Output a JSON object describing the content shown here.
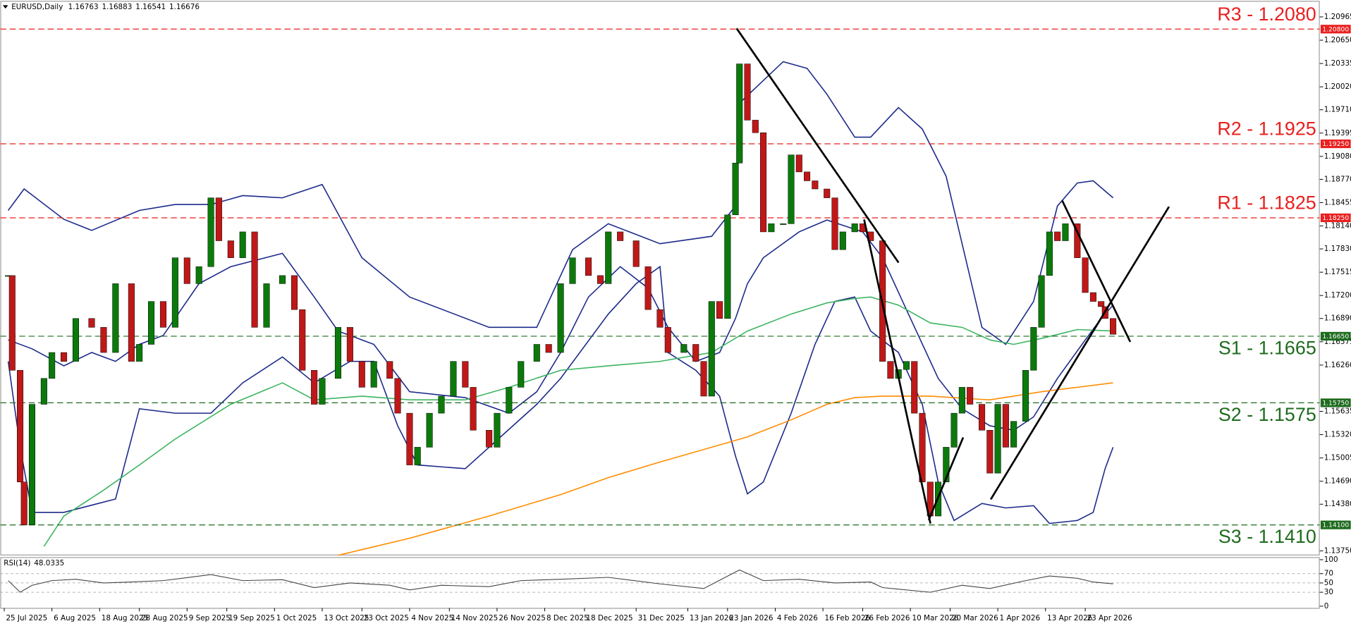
{
  "chart_data": {
    "type": "candlestick",
    "symbol": "EURUSD,Daily",
    "ohlc": [
      1.16763,
      1.16883,
      1.16541,
      1.16676
    ],
    "up_color": "#0b7a0b",
    "down_color": "#c01818",
    "grid": false,
    "xlim": [
      "2025-07-24",
      "2026-06-21"
    ],
    "ylim": [
      1.137,
      1.2117
    ],
    "xticks": [
      {
        "value": "2025-07-25",
        "label": "25 Jul 2025"
      },
      {
        "value": "2025-08-06",
        "label": "6 Aug 2025"
      },
      {
        "value": "2025-08-18",
        "label": "18 Aug 2025"
      },
      {
        "value": "2025-08-28",
        "label": "28 Aug 2025"
      },
      {
        "value": "2025-09-09",
        "label": "9 Sep 2025"
      },
      {
        "value": "2025-09-19",
        "label": "19 Sep 2025"
      },
      {
        "value": "2025-10-01",
        "label": "1 Oct 2025"
      },
      {
        "value": "2025-10-13",
        "label": "13 Oct 2025"
      },
      {
        "value": "2025-10-23",
        "label": "23 Oct 2025"
      },
      {
        "value": "2025-11-04",
        "label": "4 Nov 2025"
      },
      {
        "value": "2025-11-14",
        "label": "14 Nov 2025"
      },
      {
        "value": "2025-11-26",
        "label": "26 Nov 2025"
      },
      {
        "value": "2025-12-08",
        "label": "8 Dec 2025"
      },
      {
        "value": "2025-12-18",
        "label": "18 Dec 2025"
      },
      {
        "value": "2025-12-31",
        "label": "31 Dec 2025"
      },
      {
        "value": "2026-01-13",
        "label": "13 Jan 2026"
      },
      {
        "value": "2026-01-23",
        "label": "23 Jan 2026"
      },
      {
        "value": "2026-02-04",
        "label": "4 Feb 2026"
      },
      {
        "value": "2026-02-16",
        "label": "16 Feb 2026"
      },
      {
        "value": "2026-02-26",
        "label": "26 Feb 2026"
      },
      {
        "value": "2026-03-10",
        "label": "10 Mar 2026"
      },
      {
        "value": "2026-03-20",
        "label": "20 Mar 2026"
      },
      {
        "value": "2026-04-01",
        "label": "1 Apr 2026"
      },
      {
        "value": "2026-04-13",
        "label": "13 Apr 2026"
      },
      {
        "value": "2026-04-23",
        "label": "23 Apr 2026"
      }
    ],
    "yticks": [
      {
        "value": 1.20965,
        "label": "1.20965"
      },
      {
        "value": 1.2065,
        "label": "1.20650"
      },
      {
        "value": 1.20335,
        "label": "1.20335"
      },
      {
        "value": 1.2002,
        "label": "1.20020"
      },
      {
        "value": 1.1971,
        "label": "1.19710"
      },
      {
        "value": 1.19395,
        "label": "1.19395"
      },
      {
        "value": 1.1908,
        "label": "1.19080"
      },
      {
        "value": 1.1877,
        "label": "1.18770"
      },
      {
        "value": 1.18455,
        "label": "1.18455"
      },
      {
        "value": 1.1814,
        "label": "1.18140"
      },
      {
        "value": 1.1783,
        "label": "1.17830"
      },
      {
        "value": 1.17515,
        "label": "1.17515"
      },
      {
        "value": 1.172,
        "label": "1.17200"
      },
      {
        "value": 1.1689,
        "label": "1.16890"
      },
      {
        "value": 1.16575,
        "label": "1.16575"
      },
      {
        "value": 1.1626,
        "label": "1.16260"
      },
      {
        "value": 1.15635,
        "label": "1.15635"
      },
      {
        "value": 1.1532,
        "label": "1.15320"
      },
      {
        "value": 1.15005,
        "label": "1.15005"
      },
      {
        "value": 1.1469,
        "label": "1.14690"
      },
      {
        "value": 1.1438,
        "label": "1.14380"
      },
      {
        "value": 1.1375,
        "label": "1.13750"
      }
    ],
    "levels": [
      {
        "label": "R3 - 1.2080",
        "value": 1.208,
        "axis_label": "1.20800",
        "color": "#e8201f"
      },
      {
        "label": "R2 - 1.1925",
        "value": 1.1925,
        "axis_label": "1.19250",
        "color": "#e8201f"
      },
      {
        "label": "R1 - 1.1825",
        "value": 1.1825,
        "axis_label": "1.18250",
        "color": "#e8201f"
      },
      {
        "label": "S1 - 1.1665",
        "value": 1.1665,
        "axis_label": "1.16650",
        "color": "#1e6b1e"
      },
      {
        "label": "S2 - 1.1575",
        "value": 1.1575,
        "axis_label": "1.15750",
        "color": "#1e6b1e"
      },
      {
        "label": "S3 - 1.1410",
        "value": 1.141,
        "axis_label": "1.14100",
        "color": "#1e6b1e"
      }
    ],
    "x": [
      "2025-07-26",
      "2025-07-27",
      "2025-07-29",
      "2025-07-30",
      "2025-08-01",
      "2025-08-04",
      "2025-08-06",
      "2025-08-09",
      "2025-08-12",
      "2025-08-16",
      "2025-08-19",
      "2025-08-22",
      "2025-08-26",
      "2025-08-28",
      "2025-08-31",
      "2025-09-03",
      "2025-09-06",
      "2025-09-09",
      "2025-09-12",
      "2025-09-15",
      "2025-09-17",
      "2025-09-20",
      "2025-09-23",
      "2025-09-26",
      "2025-09-29",
      "2025-10-03",
      "2025-10-06",
      "2025-10-08",
      "2025-10-11",
      "2025-10-13",
      "2025-10-17",
      "2025-10-20",
      "2025-10-23",
      "2025-10-26",
      "2025-10-30",
      "2025-11-01",
      "2025-11-04",
      "2025-11-06",
      "2025-11-09",
      "2025-11-12",
      "2025-11-15",
      "2025-11-18",
      "2025-11-20",
      "2025-11-24",
      "2025-11-26",
      "2025-11-29",
      "2025-12-02",
      "2025-12-06",
      "2025-12-09",
      "2025-12-12",
      "2025-12-15",
      "2025-12-19",
      "2025-12-22",
      "2025-12-24",
      "2025-12-27",
      "2025-12-31",
      "2026-01-03",
      "2026-01-06",
      "2026-01-08",
      "2026-01-12",
      "2026-01-15",
      "2026-01-17",
      "2026-01-19",
      "2026-01-21",
      "2026-01-23",
      "2026-01-25",
      "2026-01-26",
      "2026-01-28",
      "2026-01-30",
      "2026-02-01",
      "2026-02-03",
      "2026-02-06",
      "2026-02-08",
      "2026-02-10",
      "2026-02-12",
      "2026-02-14",
      "2026-02-17",
      "2026-02-19",
      "2026-02-21",
      "2026-02-24",
      "2026-02-26",
      "2026-02-28",
      "2026-03-03",
      "2026-03-05",
      "2026-03-07",
      "2026-03-09",
      "2026-03-11",
      "2026-03-13",
      "2026-03-15",
      "2026-03-17",
      "2026-03-19",
      "2026-03-21",
      "2026-03-23",
      "2026-03-25",
      "2026-03-28",
      "2026-03-30",
      "2026-04-01",
      "2026-04-03",
      "2026-04-05",
      "2026-04-08",
      "2026-04-10",
      "2026-04-12",
      "2026-04-14",
      "2026-04-16",
      "2026-04-18",
      "2026-04-21",
      "2026-04-23",
      "2026-04-25",
      "2026-04-27",
      "2026-04-28",
      "2026-04-30"
    ],
    "close": [
      1.1747,
      1.1619,
      1.1468,
      1.141,
      1.1573,
      1.1608,
      1.1643,
      1.1631,
      1.1689,
      1.1677,
      1.1643,
      1.1736,
      1.1631,
      1.1654,
      1.1712,
      1.1677,
      1.1771,
      1.1736,
      1.1759,
      1.1852,
      1.1794,
      1.1771,
      1.1806,
      1.1677,
      1.1736,
      1.1747,
      1.1701,
      1.1619,
      1.1573,
      1.1608,
      1.1677,
      1.1631,
      1.1596,
      1.1631,
      1.1608,
      1.1561,
      1.1491,
      1.1515,
      1.1561,
      1.1584,
      1.1631,
      1.1596,
      1.1538,
      1.1515,
      1.1561,
      1.1596,
      1.1631,
      1.1654,
      1.1643,
      1.1736,
      1.1771,
      1.1747,
      1.1736,
      1.1806,
      1.1794,
      1.1759,
      1.1701,
      1.1677,
      1.1643,
      1.1654,
      1.1631,
      1.1584,
      1.1712,
      1.1689,
      1.1829,
      1.1899,
      1.2033,
      1.1957,
      1.194,
      1.1806,
      1.1817,
      1.1817,
      1.191,
      1.1887,
      1.1875,
      1.1864,
      1.1852,
      1.1782,
      1.1806,
      1.1817,
      1.1806,
      1.1794,
      1.1631,
      1.1608,
      1.162,
      1.1631,
      1.1561,
      1.1468,
      1.1422,
      1.1468,
      1.1515,
      1.1561,
      1.1596,
      1.1573,
      1.1538,
      1.148,
      1.1573,
      1.1515,
      1.155,
      1.1619,
      1.1677,
      1.1747,
      1.1806,
      1.1794,
      1.1817,
      1.1771,
      1.1724,
      1.1712,
      1.1705,
      1.1689,
      1.16676
    ],
    "series": [
      {
        "color": "#1c2a8a",
        "x": [
          "2025-07-26",
          "2025-07-30",
          "2025-08-09",
          "2025-08-16",
          "2025-08-28",
          "2025-09-06",
          "2025-09-15",
          "2025-09-23",
          "2025-10-03",
          "2025-10-13",
          "2025-10-23",
          "2025-11-04",
          "2025-11-24",
          "2025-12-06",
          "2025-12-15",
          "2025-12-24",
          "2026-01-06",
          "2026-01-19",
          "2026-01-25",
          "2026-01-26",
          "2026-02-06",
          "2026-02-12",
          "2026-02-17",
          "2026-02-24",
          "2026-02-28",
          "2026-03-07",
          "2026-03-13",
          "2026-03-19",
          "2026-03-28",
          "2026-04-03",
          "2026-04-10",
          "2026-04-16",
          "2026-04-21",
          "2026-04-25",
          "2026-04-30"
        ],
        "values": [
          1.1835,
          1.1864,
          1.1823,
          1.1808,
          1.1835,
          1.1843,
          1.1843,
          1.1855,
          1.1852,
          1.187,
          1.1771,
          1.1718,
          1.1677,
          1.1677,
          1.1782,
          1.1817,
          1.179,
          1.18,
          1.1841,
          1.198,
          1.2036,
          1.2027,
          1.1992,
          1.1934,
          1.1934,
          1.1974,
          1.1945,
          1.1881,
          1.1677,
          1.1654,
          1.1712,
          1.1841,
          1.1872,
          1.1875,
          1.1852
        ]
      },
      {
        "color": "#1c2a8a",
        "x": [
          "2025-07-26",
          "2025-08-01",
          "2025-08-09",
          "2025-08-16",
          "2025-08-22",
          "2025-08-28",
          "2025-09-03",
          "2025-09-12",
          "2025-09-20",
          "2025-10-03",
          "2025-10-11",
          "2025-10-17",
          "2025-10-26",
          "2025-11-04",
          "2025-11-18",
          "2025-11-29",
          "2025-12-06",
          "2025-12-12",
          "2025-12-19",
          "2025-12-27",
          "2026-01-03",
          "2026-01-08",
          "2026-01-15",
          "2026-01-21",
          "2026-01-25",
          "2026-01-28",
          "2026-02-01",
          "2026-02-10",
          "2026-02-17",
          "2026-02-26",
          "2026-03-03",
          "2026-03-09",
          "2026-03-17",
          "2026-03-23",
          "2026-03-30",
          "2026-04-05",
          "2026-04-10",
          "2026-04-16",
          "2026-04-23",
          "2026-04-27",
          "2026-04-30"
        ],
        "values": [
          1.166,
          1.1648,
          1.1625,
          1.1643,
          1.1631,
          1.1654,
          1.1666,
          1.1736,
          1.1759,
          1.1777,
          1.1718,
          1.1672,
          1.1654,
          1.159,
          1.1582,
          1.1561,
          1.159,
          1.1643,
          1.1718,
          1.1759,
          1.173,
          1.1677,
          1.1631,
          1.1643,
          1.1689,
          1.1736,
          1.1771,
          1.1806,
          1.1822,
          1.1806,
          1.1771,
          1.1701,
          1.1608,
          1.1567,
          1.1544,
          1.1538,
          1.1556,
          1.1608,
          1.166,
          1.1689,
          1.1707
        ]
      },
      {
        "color": "#1c2a8a",
        "x": [
          "2025-07-26",
          "2025-07-29",
          "2025-08-01",
          "2025-08-09",
          "2025-08-22",
          "2025-08-28",
          "2025-09-06",
          "2025-09-15",
          "2025-09-23",
          "2025-10-03",
          "2025-10-11",
          "2025-10-20",
          "2025-10-26",
          "2025-11-01",
          "2025-11-06",
          "2025-11-18",
          "2025-11-24",
          "2025-12-06",
          "2025-12-12",
          "2025-12-24",
          "2025-12-31",
          "2026-01-06",
          "2026-01-08",
          "2026-01-15",
          "2026-01-21",
          "2026-01-25",
          "2026-01-28",
          "2026-02-01",
          "2026-02-08",
          "2026-02-14",
          "2026-02-19",
          "2026-02-24",
          "2026-02-28",
          "2026-03-07",
          "2026-03-13",
          "2026-03-17",
          "2026-03-21",
          "2026-03-28",
          "2026-04-03",
          "2026-04-10",
          "2026-04-14",
          "2026-04-21",
          "2026-04-25",
          "2026-04-28",
          "2026-04-30"
        ],
        "values": [
          1.1631,
          1.1515,
          1.1427,
          1.1427,
          1.1445,
          1.1567,
          1.1561,
          1.1561,
          1.1602,
          1.1637,
          1.1602,
          1.1631,
          1.1631,
          1.1544,
          1.1491,
          1.1486,
          1.1515,
          1.1573,
          1.1608,
          1.1695,
          1.1736,
          1.1759,
          1.1643,
          1.1619,
          1.1584,
          1.1503,
          1.1452,
          1.1468,
          1.1561,
          1.1654,
          1.1712,
          1.1718,
          1.1672,
          1.1643,
          1.1573,
          1.1468,
          1.1416,
          1.1439,
          1.1433,
          1.1436,
          1.1412,
          1.1416,
          1.1427,
          1.1486,
          1.1515
        ]
      },
      {
        "color": "#3cb460",
        "x": [
          "2025-08-04",
          "2025-08-09",
          "2025-08-19",
          "2025-08-28",
          "2025-09-06",
          "2025-09-20",
          "2025-10-03",
          "2025-10-11",
          "2025-10-23",
          "2025-11-04",
          "2025-11-18",
          "2025-11-29",
          "2025-12-12",
          "2025-12-24",
          "2026-01-06",
          "2026-01-19",
          "2026-01-28",
          "2026-02-08",
          "2026-02-17",
          "2026-02-24",
          "2026-02-28",
          "2026-03-07",
          "2026-03-15",
          "2026-03-23",
          "2026-03-30",
          "2026-04-05",
          "2026-04-12",
          "2026-04-21",
          "2026-04-30"
        ],
        "values": [
          1.1381,
          1.1422,
          1.1457,
          1.1491,
          1.1526,
          1.1573,
          1.1602,
          1.1579,
          1.1584,
          1.1579,
          1.1579,
          1.1596,
          1.1619,
          1.1625,
          1.1631,
          1.1643,
          1.1672,
          1.1695,
          1.171,
          1.1716,
          1.1718,
          1.1707,
          1.1683,
          1.1677,
          1.166,
          1.1654,
          1.1662,
          1.1674,
          1.1672
        ]
      },
      {
        "color": "#ff8c00",
        "x": [
          "2025-10-17",
          "2025-11-04",
          "2025-11-24",
          "2025-12-12",
          "2025-12-24",
          "2026-01-06",
          "2026-01-19",
          "2026-01-28",
          "2026-02-08",
          "2026-02-17",
          "2026-02-24",
          "2026-03-03",
          "2026-03-15",
          "2026-03-30",
          "2026-04-12",
          "2026-04-21",
          "2026-04-30"
        ],
        "values": [
          1.1369,
          1.1392,
          1.1422,
          1.1451,
          1.1474,
          1.1495,
          1.1515,
          1.1529,
          1.1552,
          1.1573,
          1.1582,
          1.1584,
          1.1584,
          1.1579,
          1.159,
          1.1596,
          1.1602
        ]
      }
    ],
    "rsi": {
      "label": "RSI(14)",
      "color": "#444444",
      "ylim": [
        0,
        100
      ],
      "yticks": [
        100,
        70,
        50,
        30,
        0
      ],
      "x": [
        "2025-07-26",
        "2025-07-29",
        "2025-08-01",
        "2025-08-06",
        "2025-08-12",
        "2025-08-19",
        "2025-08-26",
        "2025-09-03",
        "2025-09-15",
        "2025-09-23",
        "2025-10-03",
        "2025-10-11",
        "2025-10-20",
        "2025-10-30",
        "2025-11-04",
        "2025-11-12",
        "2025-11-24",
        "2025-12-02",
        "2025-12-12",
        "2025-12-24",
        "2026-01-06",
        "2026-01-17",
        "2026-01-26",
        "2026-02-01",
        "2026-02-10",
        "2026-02-19",
        "2026-02-28",
        "2026-03-03",
        "2026-03-15",
        "2026-03-23",
        "2026-03-30",
        "2026-04-08",
        "2026-04-14",
        "2026-04-21",
        "2026-04-25",
        "2026-04-30"
      ],
      "values": [
        55,
        30,
        45,
        55,
        58,
        50,
        52,
        55,
        68,
        55,
        57,
        40,
        50,
        45,
        35,
        45,
        42,
        55,
        58,
        62,
        48,
        38,
        78,
        55,
        58,
        50,
        52,
        40,
        30,
        45,
        38,
        55,
        65,
        60,
        52,
        48.0335
      ]
    }
  }
}
